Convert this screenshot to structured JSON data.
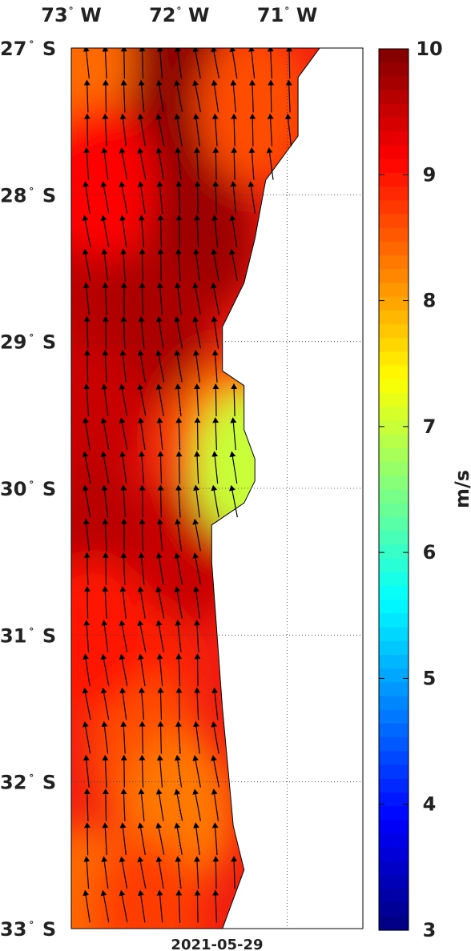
{
  "map": {
    "lon_ticks": [
      {
        "value": -73,
        "label": "73",
        "hemi": "W"
      },
      {
        "value": -72,
        "label": "72",
        "hemi": "W"
      },
      {
        "value": -71,
        "label": "71",
        "hemi": "W"
      }
    ],
    "lat_ticks": [
      {
        "value": -27,
        "label": "27",
        "hemi": "S"
      },
      {
        "value": -28,
        "label": "28",
        "hemi": "S"
      },
      {
        "value": -29,
        "label": "29",
        "hemi": "S"
      },
      {
        "value": -30,
        "label": "30",
        "hemi": "S"
      },
      {
        "value": -31,
        "label": "31",
        "hemi": "S"
      },
      {
        "value": -32,
        "label": "32",
        "hemi": "S"
      },
      {
        "value": -33,
        "label": "33",
        "hemi": "S"
      }
    ],
    "lon_range": [
      -73.0,
      -70.3
    ],
    "lat_range": [
      -33.0,
      -27.0
    ],
    "date": "2021-05-29",
    "land_color": "#ffffff",
    "vector_color": "#000000",
    "grid": "dotted"
  },
  "colorbar": {
    "min": 3,
    "max": 10,
    "ticks": [
      "3",
      "4",
      "5",
      "6",
      "7",
      "8",
      "9",
      "10"
    ],
    "unit": "m/s",
    "colormap": "jet"
  },
  "chart_data": {
    "type": "heatmap",
    "variable": "wind speed",
    "unit": "m/s",
    "vrange": [
      3,
      10
    ],
    "xlim": [
      -73.0,
      -70.3
    ],
    "ylim": [
      -33.0,
      -27.0
    ],
    "coast": [
      [
        -27.0,
        -70.7
      ],
      [
        -27.2,
        -70.9
      ],
      [
        -27.6,
        -70.9
      ],
      [
        -27.9,
        -71.2
      ],
      [
        -28.3,
        -71.3
      ],
      [
        -28.6,
        -71.4
      ],
      [
        -28.9,
        -71.6
      ],
      [
        -29.2,
        -71.6
      ],
      [
        -29.3,
        -71.4
      ],
      [
        -29.6,
        -71.4
      ],
      [
        -29.8,
        -71.3
      ],
      [
        -29.95,
        -71.3
      ],
      [
        -30.1,
        -71.4
      ],
      [
        -30.25,
        -71.7
      ],
      [
        -30.5,
        -71.7
      ],
      [
        -31.0,
        -71.65
      ],
      [
        -31.5,
        -71.6
      ],
      [
        -31.9,
        -71.55
      ],
      [
        -32.3,
        -71.5
      ],
      [
        -32.6,
        -71.4
      ],
      [
        -33.0,
        -71.6
      ]
    ],
    "speed_anchors": [
      {
        "lat": -27.15,
        "lon": -72.05,
        "v": 9.9
      },
      {
        "lat": -27.7,
        "lon": -71.9,
        "v": 9.9
      },
      {
        "lat": -28.3,
        "lon": -71.8,
        "v": 9.8
      },
      {
        "lat": -28.6,
        "lon": -72.9,
        "v": 9.6
      },
      {
        "lat": -28.9,
        "lon": -72.2,
        "v": 9.7
      },
      {
        "lat": -29.5,
        "lon": -72.8,
        "v": 9.5
      },
      {
        "lat": -30.3,
        "lon": -72.8,
        "v": 9.6
      },
      {
        "lat": -30.4,
        "lon": -71.9,
        "v": 9.5
      },
      {
        "lat": -27.1,
        "lon": -72.95,
        "v": 8.4
      },
      {
        "lat": -27.4,
        "lon": -71.3,
        "v": 8.6
      },
      {
        "lat": -27.9,
        "lon": -72.75,
        "v": 9.1
      },
      {
        "lat": -29.65,
        "lon": -71.55,
        "v": 8.4
      },
      {
        "lat": -29.85,
        "lon": -71.35,
        "v": 7.0
      },
      {
        "lat": -31.3,
        "lon": -72.4,
        "v": 8.9
      },
      {
        "lat": -31.8,
        "lon": -72.3,
        "v": 8.6
      },
      {
        "lat": -32.2,
        "lon": -72.0,
        "v": 8.3
      },
      {
        "lat": -32.8,
        "lon": -72.9,
        "v": 8.4
      },
      {
        "lat": -32.9,
        "lon": -72.3,
        "v": 8.7
      },
      {
        "lat": -31.0,
        "lon": -72.8,
        "v": 9.0
      }
    ],
    "wind_direction": "northward, slightly veering west",
    "vector_lons": [
      -72.85,
      -72.68,
      -72.51,
      -72.34,
      -72.17,
      -72.0,
      -71.83,
      -71.66,
      -71.49,
      -71.32,
      -71.15,
      -70.98,
      -70.81
    ],
    "vector_lats": [
      -27.1,
      -27.33,
      -27.56,
      -27.79,
      -28.02,
      -28.25,
      -28.48,
      -28.71,
      -28.94,
      -29.17,
      -29.4,
      -29.63,
      -29.86,
      -30.09,
      -30.32,
      -30.55,
      -30.78,
      -31.01,
      -31.24,
      -31.47,
      -31.7,
      -31.93,
      -32.16,
      -32.39,
      -32.62,
      -32.85
    ]
  }
}
